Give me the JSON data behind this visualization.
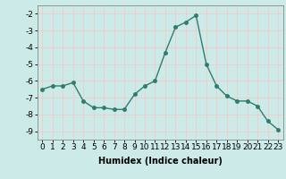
{
  "x": [
    0,
    1,
    2,
    3,
    4,
    5,
    6,
    7,
    8,
    9,
    10,
    11,
    12,
    13,
    14,
    15,
    16,
    17,
    18,
    19,
    20,
    21,
    22,
    23
  ],
  "y": [
    -6.5,
    -6.3,
    -6.3,
    -6.1,
    -7.2,
    -7.6,
    -7.6,
    -7.7,
    -7.7,
    -6.8,
    -6.3,
    -6.0,
    -4.3,
    -2.8,
    -2.5,
    -2.1,
    -5.0,
    -6.3,
    -6.9,
    -7.2,
    -7.2,
    -7.5,
    -8.4,
    -8.9
  ],
  "line_color": "#2e7d6e",
  "marker": "o",
  "markersize": 2.5,
  "linewidth": 1.0,
  "xlabel": "Humidex (Indice chaleur)",
  "xlim": [
    -0.5,
    23.5
  ],
  "ylim": [
    -9.5,
    -1.5
  ],
  "yticks": [
    -2,
    -3,
    -4,
    -5,
    -6,
    -7,
    -8,
    -9
  ],
  "xticks": [
    0,
    1,
    2,
    3,
    4,
    5,
    6,
    7,
    8,
    9,
    10,
    11,
    12,
    13,
    14,
    15,
    16,
    17,
    18,
    19,
    20,
    21,
    22,
    23
  ],
  "bg_color": "#cceae8",
  "grid_color": "#f5c8c8",
  "label_fontsize": 7,
  "tick_fontsize": 6.5
}
